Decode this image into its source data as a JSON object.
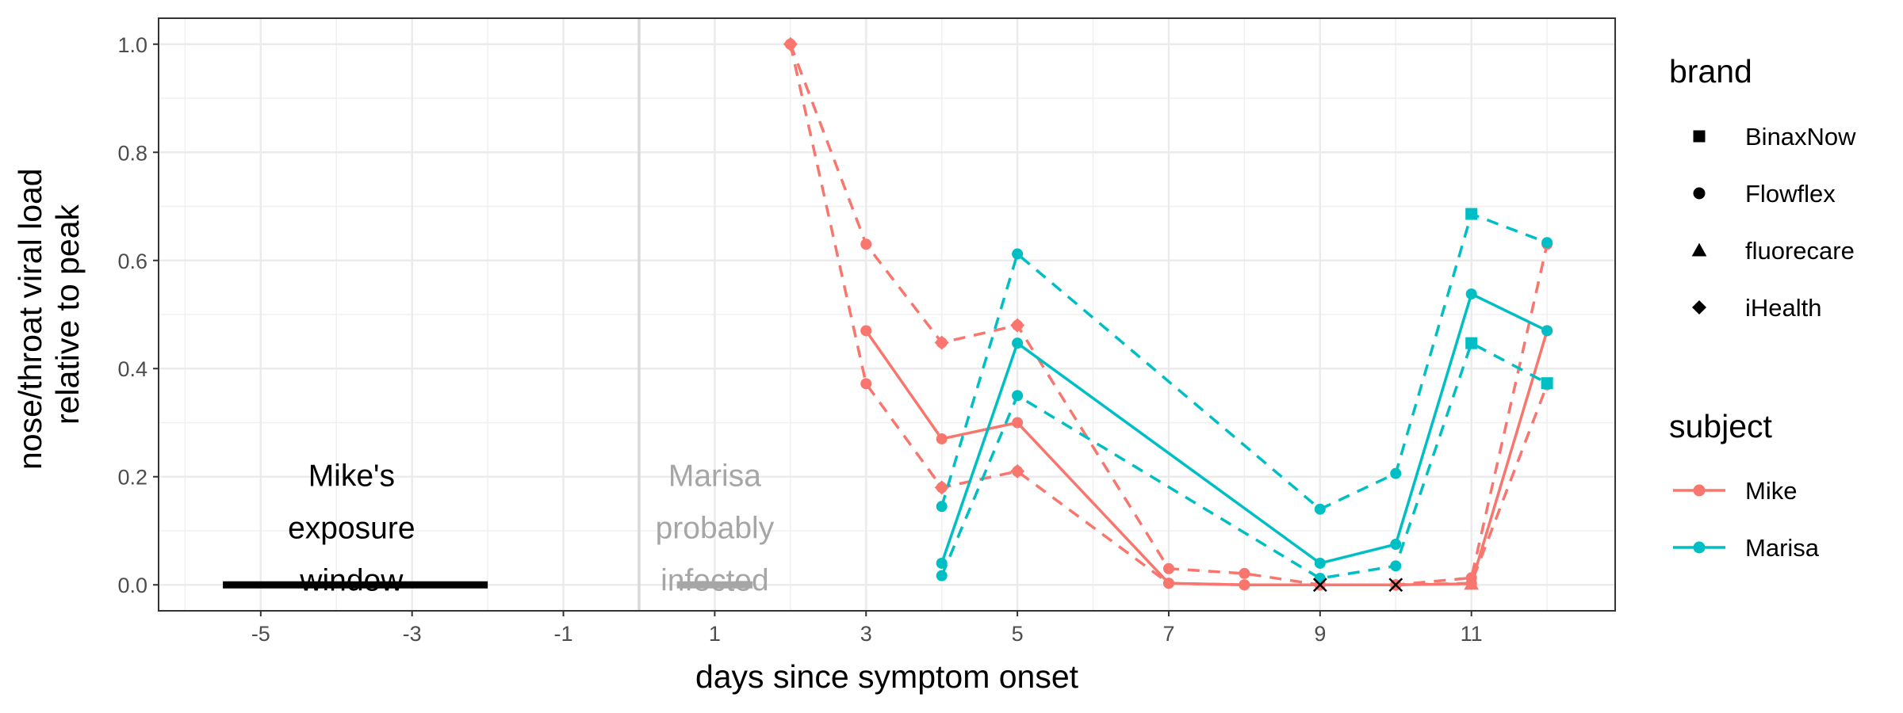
{
  "chart_data": {
    "type": "line",
    "xlabel": "days since symptom onset",
    "ylabel_lines": [
      "nose/throat viral load",
      "relative to peak"
    ],
    "xlim": [
      -6.35,
      12.9
    ],
    "ylim": [
      -0.048,
      1.048
    ],
    "x_ticks": [
      -5,
      -3,
      -1,
      1,
      3,
      5,
      7,
      9,
      11
    ],
    "x_tick_labels": [
      "-5",
      "-3",
      "-1",
      "1",
      "3",
      "5",
      "7",
      "9",
      "11"
    ],
    "y_ticks": [
      0,
      0.2,
      0.4,
      0.6,
      0.8,
      1
    ],
    "y_tick_labels": [
      "0.0",
      "0.2",
      "0.4",
      "0.6",
      "0.8",
      "1.0"
    ],
    "grid": true,
    "vline_x": 0,
    "annotations": [
      {
        "lines": [
          "Mike's",
          "exposure",
          "window"
        ],
        "x": -3.8,
        "color": "#000000",
        "bar": [
          -5.5,
          -2
        ],
        "bar_color": "#000000"
      },
      {
        "lines": [
          "Marisa",
          "probably",
          "infected"
        ],
        "x": 1,
        "color": "#a6a6a6",
        "bar": [
          0.5,
          1.5
        ],
        "bar_color": "#a6a6a6"
      }
    ],
    "colors": {
      "Mike": "#F8766D",
      "Marisa": "#00BFC4"
    },
    "series": [
      {
        "subject": "Mike",
        "dash": "solid",
        "shape": "circle",
        "x": [
          3,
          4,
          5,
          7,
          8,
          9,
          10,
          11,
          12
        ],
        "y": [
          0.47,
          0.27,
          0.3,
          0.003,
          0.0,
          0.0,
          0.0,
          0.002,
          0.47
        ]
      },
      {
        "subject": "Mike",
        "dash": "dashed",
        "shape": "circle",
        "x": [
          2,
          3,
          4,
          5,
          7,
          8,
          9,
          10,
          11,
          12
        ],
        "y": [
          1.0,
          0.63,
          0.448,
          0.48,
          0.03,
          0.021,
          0.0,
          0.0,
          0.013,
          0.63
        ]
      },
      {
        "subject": "Mike",
        "dash": "dashed",
        "shape": "circle",
        "x": [
          2,
          3,
          4,
          5,
          7,
          8,
          9,
          10,
          11,
          12
        ],
        "y": [
          1.0,
          0.372,
          0.18,
          0.21,
          0.003,
          0.0,
          0.0,
          0.0,
          0.003,
          0.37
        ]
      },
      {
        "subject": "Marisa",
        "dash": "solid",
        "shape": "circle",
        "x": [
          4,
          5,
          9,
          10,
          11,
          12
        ],
        "y": [
          0.04,
          0.447,
          0.04,
          0.075,
          0.538,
          0.47
        ]
      },
      {
        "subject": "Marisa",
        "dash": "dashed",
        "shape": "circle",
        "x": [
          4,
          5,
          9,
          10,
          11,
          12
        ],
        "y": [
          0.145,
          0.612,
          0.14,
          0.206,
          0.686,
          0.633
        ]
      },
      {
        "subject": "Marisa",
        "dash": "dashed",
        "shape": "circle",
        "x": [
          4,
          5,
          9,
          10,
          11,
          12
        ],
        "y": [
          0.017,
          0.35,
          0.012,
          0.035,
          0.447,
          0.373
        ]
      }
    ],
    "special_markers": [
      {
        "subject": "Mike",
        "shape": "diamond",
        "x": 2,
        "y": 1.0
      },
      {
        "subject": "Mike",
        "shape": "diamond",
        "x": 4,
        "y": 0.448
      },
      {
        "subject": "Mike",
        "shape": "diamond",
        "x": 4,
        "y": 0.18
      },
      {
        "subject": "Mike",
        "shape": "diamond",
        "x": 5,
        "y": 0.48
      },
      {
        "subject": "Mike",
        "shape": "diamond",
        "x": 5,
        "y": 0.21
      },
      {
        "subject": "Mike",
        "shape": "triangle",
        "x": 11,
        "y": 0.002
      },
      {
        "subject": "Marisa",
        "shape": "square",
        "x": 11,
        "y": 0.686
      },
      {
        "subject": "Marisa",
        "shape": "square",
        "x": 11,
        "y": 0.447
      },
      {
        "subject": "Marisa",
        "shape": "square",
        "x": 12,
        "y": 0.373
      },
      {
        "subject": null,
        "shape": "x",
        "x": 9,
        "y": 0.0
      },
      {
        "subject": null,
        "shape": "x",
        "x": 10,
        "y": 0.0
      }
    ],
    "legend_position": "right",
    "legend_brand": {
      "title": "brand",
      "items": [
        {
          "label": "BinaxNow",
          "shape": "square"
        },
        {
          "label": "Flowflex",
          "shape": "circle"
        },
        {
          "label": "fluorecare",
          "shape": "triangle"
        },
        {
          "label": "iHealth",
          "shape": "diamond"
        }
      ]
    },
    "legend_subject": {
      "title": "subject",
      "items": [
        {
          "label": "Mike",
          "color": "#F8766D"
        },
        {
          "label": "Marisa",
          "color": "#00BFC4"
        }
      ]
    }
  }
}
